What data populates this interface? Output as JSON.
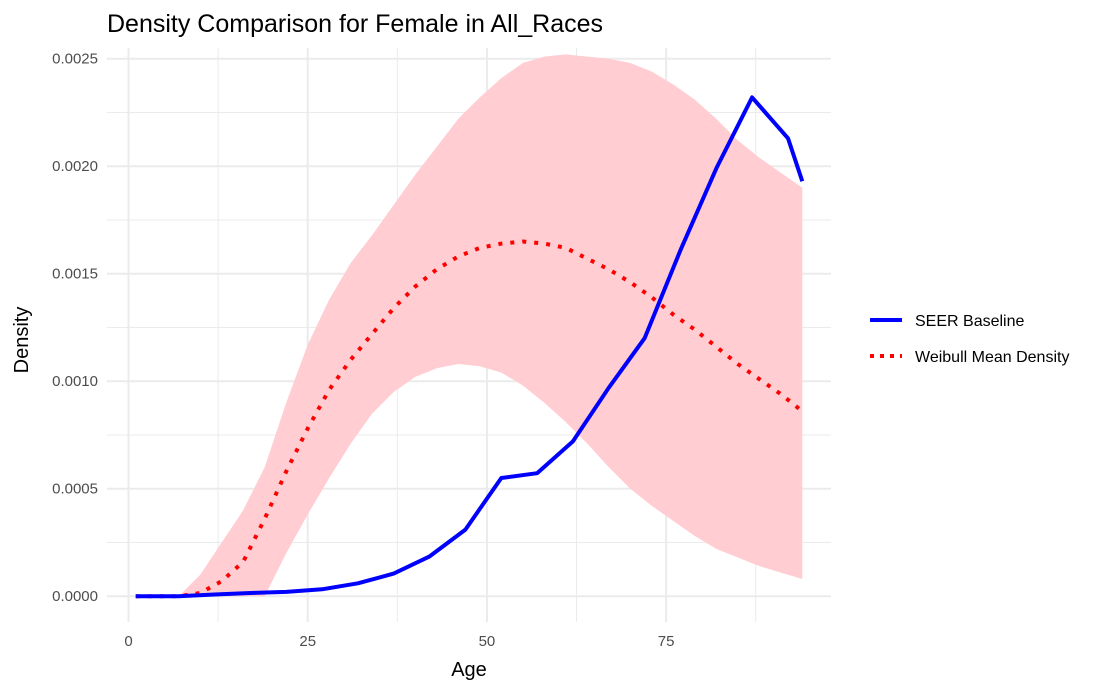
{
  "chart_data": {
    "type": "line",
    "title": "Density Comparison for Female in All_Races",
    "xlabel": "Age",
    "ylabel": "Density",
    "xlim": [
      -3,
      98
    ],
    "ylim": [
      -0.00012,
      0.00255
    ],
    "x_ticks": [
      0,
      25,
      50,
      75
    ],
    "x_tick_labels": [
      "0",
      "25",
      "50",
      "75"
    ],
    "y_ticks": [
      0,
      0.0005,
      0.001,
      0.0015,
      0.002,
      0.0025
    ],
    "y_tick_labels": [
      "0.0000",
      "0.0005",
      "0.0010",
      "0.0015",
      "0.0020",
      "0.0025"
    ],
    "grid": true,
    "legend_position": "right",
    "colors": {
      "seer": "#0000ff",
      "weibull": "#ff0000",
      "band": "#ffcdd2",
      "grid": "#ebebeb"
    },
    "series": [
      {
        "name": "SEER Baseline",
        "style": "solid",
        "x": [
          1,
          7,
          12,
          17,
          22,
          27,
          32,
          37,
          42,
          47,
          52,
          57,
          62,
          67,
          72,
          77,
          82,
          87,
          92,
          94
        ],
        "values": [
          0.0,
          0.0,
          8e-06,
          1.5e-05,
          2e-05,
          3.2e-05,
          6e-05,
          0.000105,
          0.000185,
          0.00031,
          0.00055,
          0.000572,
          0.00072,
          0.00097,
          0.0012,
          0.00161,
          0.00199,
          0.00232,
          0.00213,
          0.00193
        ]
      },
      {
        "name": "Weibull Mean Density",
        "style": "dotted",
        "x": [
          1,
          7,
          10,
          13,
          16,
          19,
          22,
          25,
          28,
          31,
          34,
          37,
          40,
          43,
          46,
          49,
          52,
          55,
          58,
          61,
          64,
          67,
          70,
          73,
          76,
          79,
          82,
          85,
          88,
          91,
          94
        ],
        "values": [
          0.0,
          0.0,
          1.5e-05,
          7e-05,
          0.00016,
          0.00036,
          0.00058,
          0.00078,
          0.00096,
          0.0011,
          0.00122,
          0.00134,
          0.00144,
          0.00152,
          0.00158,
          0.00162,
          0.00164,
          0.00165,
          0.00164,
          0.00162,
          0.00157,
          0.00152,
          0.00146,
          0.00139,
          0.00131,
          0.00124,
          0.00116,
          0.00108,
          0.00101,
          0.00094,
          0.00086
        ]
      }
    ],
    "band": {
      "x": [
        1,
        5,
        7,
        10,
        13,
        16,
        19,
        22,
        25,
        28,
        31,
        34,
        37,
        40,
        43,
        46,
        49,
        52,
        55,
        58,
        61,
        64,
        67,
        70,
        73,
        76,
        79,
        82,
        85,
        88,
        91,
        94
      ],
      "lower": [
        0.0,
        0.0,
        0.0,
        0.0,
        0.0,
        0.0,
        0.0,
        0.0002,
        0.00038,
        0.00055,
        0.00071,
        0.00085,
        0.00095,
        0.00102,
        0.00106,
        0.00108,
        0.00107,
        0.00104,
        0.00098,
        0.0009,
        0.00081,
        0.00071,
        0.0006,
        0.0005,
        0.00042,
        0.00035,
        0.00028,
        0.00022,
        0.00018,
        0.00014,
        0.00011,
        8e-05
      ],
      "upper": [
        0.0,
        0.0,
        0.0,
        0.0001,
        0.00025,
        0.0004,
        0.0006,
        0.0009,
        0.00117,
        0.00138,
        0.00155,
        0.00168,
        0.00182,
        0.00196,
        0.00209,
        0.00222,
        0.00232,
        0.00241,
        0.00248,
        0.00251,
        0.00252,
        0.00251,
        0.0025,
        0.00248,
        0.00244,
        0.00238,
        0.00231,
        0.00222,
        0.00212,
        0.00204,
        0.00197,
        0.0019
      ]
    }
  }
}
